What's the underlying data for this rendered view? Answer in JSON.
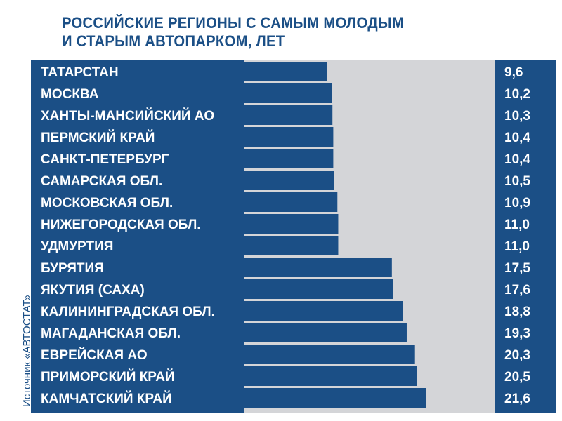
{
  "title": {
    "line1": "РОССИЙСКИЕ РЕГИОНЫ С САМЫМ МОЛОДЫМ",
    "line2": "И СТАРЫМ АВТОПАРКОМ, ЛЕТ"
  },
  "source": "Источник «АВТОСТАТ»",
  "colors": {
    "panel": "#1b4f86",
    "bar": "#1b4f86",
    "track": "#d4d5d8",
    "text_on_panel": "#ffffff",
    "title": "#1b4f86"
  },
  "chart_data": {
    "type": "bar",
    "orientation": "horizontal",
    "title": "РОССИЙСКИЕ РЕГИОНЫ С САМЫМ МОЛОДЫМ И СТАРЫМ АВТОПАРКОМ, ЛЕТ",
    "categories": [
      "ТАТАРСТАН",
      "МОСКВА",
      "ХАНТЫ-МАНСИЙСКИЙ АО",
      "ПЕРМСКИЙ КРАЙ",
      "САНКТ-ПЕТЕРБУРГ",
      "САМАРСКАЯ ОБЛ.",
      "МОСКОВСКАЯ ОБЛ.",
      "НИЖЕГОРОДСКАЯ ОБЛ.",
      "УДМУРТИЯ",
      "БУРЯТИЯ",
      "ЯКУТИЯ (САХА)",
      "КАЛИНИНГРАДСКАЯ ОБЛ.",
      "МАГАДАНСКАЯ ОБЛ.",
      "ЕВРЕЙСКАЯ АО",
      "ПРИМОРСКИЙ КРАЙ",
      "КАМЧАТСКИЙ КРАЙ"
    ],
    "values": [
      9.6,
      10.2,
      10.3,
      10.4,
      10.4,
      10.5,
      10.9,
      11.0,
      11.0,
      17.5,
      17.6,
      18.8,
      19.3,
      20.3,
      20.5,
      21.6
    ],
    "value_labels": [
      "9,6",
      "10,2",
      "10,3",
      "10,4",
      "10,4",
      "10,5",
      "10,9",
      "11,0",
      "11,0",
      "17,5",
      "17,6",
      "18,8",
      "19,3",
      "20,3",
      "20,5",
      "21,6"
    ],
    "unit": "лет",
    "grid": false,
    "legend": "none"
  }
}
